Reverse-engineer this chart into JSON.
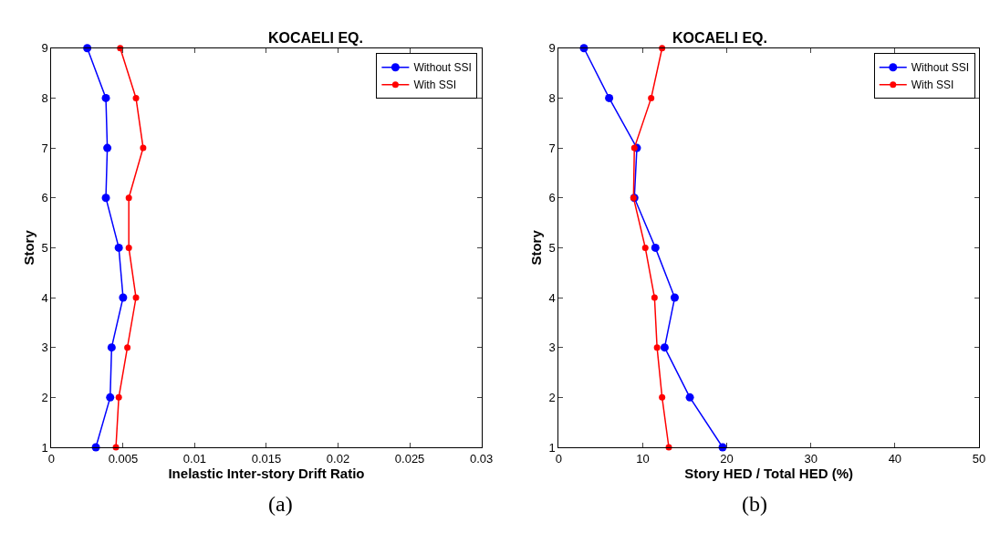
{
  "chart_data": [
    {
      "type": "line",
      "title": "KOCAELI EQ.",
      "xlabel": "Inelastic Inter-story Drift Ratio",
      "ylabel": "Story",
      "xlim": [
        0,
        0.03
      ],
      "xticks": [
        0,
        0.005,
        0.01,
        0.015,
        0.02,
        0.025,
        0.03
      ],
      "ylim": [
        1,
        9
      ],
      "yticks": [
        1,
        2,
        3,
        4,
        5,
        6,
        7,
        8,
        9
      ],
      "legend": "top right",
      "marker": "circle",
      "annotations": [
        "(a)"
      ],
      "series": [
        {
          "name": "Without SSI",
          "color": "#0000ff",
          "x": [
            0.0031,
            0.0041,
            0.0042,
            0.005,
            0.0047,
            0.0038,
            0.0039,
            0.0038,
            0.0025
          ],
          "values": [
            1,
            2,
            3,
            4,
            5,
            6,
            7,
            8,
            9
          ]
        },
        {
          "name": "With SSI",
          "color": "#ff0000",
          "x": [
            0.0045,
            0.0047,
            0.0053,
            0.0059,
            0.0054,
            0.0054,
            0.0064,
            0.0059,
            0.0048
          ],
          "values": [
            1,
            2,
            3,
            4,
            5,
            6,
            7,
            8,
            9
          ]
        }
      ]
    },
    {
      "type": "line",
      "title": "KOCAELI EQ.",
      "xlabel": "Story HED / Total HED (%)",
      "ylabel": "Story",
      "xlim": [
        0,
        50
      ],
      "xticks": [
        0,
        10,
        20,
        30,
        40,
        50
      ],
      "ylim": [
        1,
        9
      ],
      "yticks": [
        1,
        2,
        3,
        4,
        5,
        6,
        7,
        8,
        9
      ],
      "legend": "top right",
      "marker": "circle",
      "annotations": [
        "(b)"
      ],
      "series": [
        {
          "name": "Without SSI",
          "color": "#0000ff",
          "x": [
            19.5,
            15.6,
            12.6,
            13.8,
            11.5,
            9.0,
            9.3,
            6.0,
            3.0
          ],
          "values": [
            1,
            2,
            3,
            4,
            5,
            6,
            7,
            8,
            9
          ]
        },
        {
          "name": "With SSI",
          "color": "#ff0000",
          "x": [
            13.1,
            12.3,
            11.7,
            11.4,
            10.3,
            8.9,
            9.0,
            11.0,
            12.3
          ],
          "values": [
            1,
            2,
            3,
            4,
            5,
            6,
            7,
            8,
            9
          ]
        }
      ]
    }
  ]
}
